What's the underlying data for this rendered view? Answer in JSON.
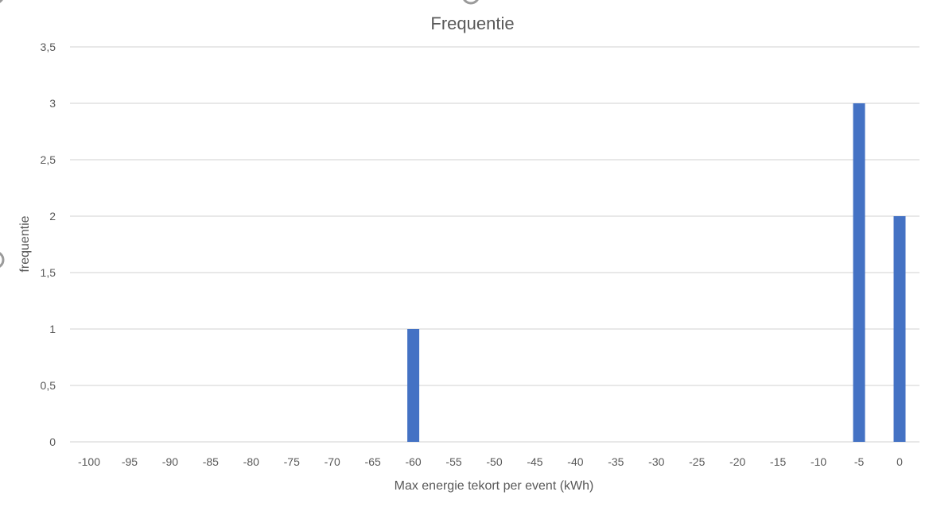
{
  "chart_data": {
    "type": "bar",
    "title": "Frequentie",
    "xlabel": "Max energie tekort per event (kWh)",
    "ylabel": "frequentie",
    "categories": [
      "-100",
      "-95",
      "-90",
      "-85",
      "-80",
      "-75",
      "-70",
      "-65",
      "-60",
      "-55",
      "-50",
      "-45",
      "-40",
      "-35",
      "-30",
      "-25",
      "-20",
      "-15",
      "-10",
      "-5",
      "0"
    ],
    "values": [
      0,
      0,
      0,
      0,
      0,
      0,
      0,
      0,
      1,
      0,
      0,
      0,
      0,
      0,
      0,
      0,
      0,
      0,
      0,
      3,
      2
    ],
    "ylim": [
      0,
      3.5
    ],
    "yticks": [
      0,
      0.5,
      1,
      1.5,
      2,
      2.5,
      3,
      3.5
    ],
    "ytick_labels": [
      "0",
      "0,5",
      "1",
      "1,5",
      "2",
      "2,5",
      "3",
      "3,5"
    ],
    "grid": true,
    "bar_color": "#4472c4",
    "legend": "none"
  }
}
